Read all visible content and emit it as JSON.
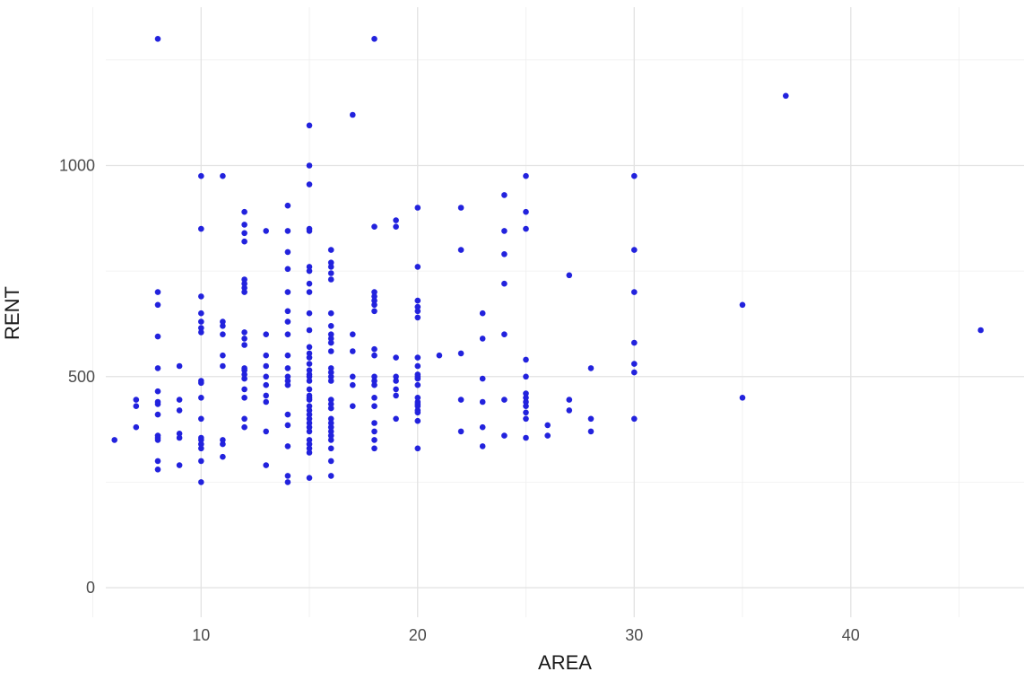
{
  "chart": {
    "point_color": "#2222DD",
    "grid_major_color": "#E3E3E3",
    "grid_minor_color": "#EFEFEF",
    "axis_text_color": "#4D4D4D",
    "axis_title_color": "#1A1A1A",
    "background": "#FFFFFF"
  },
  "chart_data": {
    "type": "scatter",
    "title": "",
    "xlabel": "AREA",
    "ylabel": "RENT",
    "x_ticks": [
      10,
      20,
      30,
      40
    ],
    "x_minor_ticks": [
      5,
      15,
      25,
      35,
      45
    ],
    "y_ticks": [
      0,
      500,
      1000
    ],
    "y_minor_ticks": [
      250,
      750,
      1250
    ],
    "xlim": [
      5.6,
      48
    ],
    "ylim": [
      -70,
      1375
    ],
    "grid": true,
    "legend": "none",
    "points": [
      [
        6,
        350
      ],
      [
        7,
        445
      ],
      [
        7,
        430
      ],
      [
        7,
        380
      ],
      [
        8,
        1300
      ],
      [
        8,
        700
      ],
      [
        8,
        670
      ],
      [
        8,
        595
      ],
      [
        8,
        520
      ],
      [
        8,
        465
      ],
      [
        8,
        440
      ],
      [
        8,
        435
      ],
      [
        8,
        410
      ],
      [
        8,
        360
      ],
      [
        8,
        355
      ],
      [
        8,
        350
      ],
      [
        8,
        300
      ],
      [
        8,
        280
      ],
      [
        9,
        525
      ],
      [
        9,
        445
      ],
      [
        9,
        420
      ],
      [
        9,
        365
      ],
      [
        9,
        355
      ],
      [
        9,
        290
      ],
      [
        10,
        975
      ],
      [
        10,
        850
      ],
      [
        10,
        690
      ],
      [
        10,
        650
      ],
      [
        10,
        630
      ],
      [
        10,
        615
      ],
      [
        10,
        605
      ],
      [
        10,
        490
      ],
      [
        10,
        485
      ],
      [
        10,
        450
      ],
      [
        10,
        400
      ],
      [
        10,
        355
      ],
      [
        10,
        350
      ],
      [
        10,
        340
      ],
      [
        10,
        330
      ],
      [
        10,
        300
      ],
      [
        10,
        250
      ],
      [
        11,
        975
      ],
      [
        11,
        630
      ],
      [
        11,
        620
      ],
      [
        11,
        600
      ],
      [
        11,
        550
      ],
      [
        11,
        525
      ],
      [
        11,
        350
      ],
      [
        11,
        340
      ],
      [
        11,
        310
      ],
      [
        12,
        890
      ],
      [
        12,
        860
      ],
      [
        12,
        840
      ],
      [
        12,
        820
      ],
      [
        12,
        730
      ],
      [
        12,
        720
      ],
      [
        12,
        710
      ],
      [
        12,
        700
      ],
      [
        12,
        605
      ],
      [
        12,
        590
      ],
      [
        12,
        575
      ],
      [
        12,
        520
      ],
      [
        12,
        515
      ],
      [
        12,
        505
      ],
      [
        12,
        495
      ],
      [
        12,
        470
      ],
      [
        12,
        450
      ],
      [
        12,
        400
      ],
      [
        12,
        380
      ],
      [
        13,
        845
      ],
      [
        13,
        600
      ],
      [
        13,
        550
      ],
      [
        13,
        525
      ],
      [
        13,
        500
      ],
      [
        13,
        480
      ],
      [
        13,
        455
      ],
      [
        13,
        440
      ],
      [
        13,
        370
      ],
      [
        13,
        290
      ],
      [
        14,
        905
      ],
      [
        14,
        845
      ],
      [
        14,
        795
      ],
      [
        14,
        755
      ],
      [
        14,
        700
      ],
      [
        14,
        655
      ],
      [
        14,
        630
      ],
      [
        14,
        600
      ],
      [
        14,
        550
      ],
      [
        14,
        520
      ],
      [
        14,
        500
      ],
      [
        14,
        490
      ],
      [
        14,
        480
      ],
      [
        14,
        410
      ],
      [
        14,
        385
      ],
      [
        14,
        335
      ],
      [
        14,
        265
      ],
      [
        14,
        250
      ],
      [
        15,
        1095
      ],
      [
        15,
        1000
      ],
      [
        15,
        955
      ],
      [
        15,
        850
      ],
      [
        15,
        845
      ],
      [
        15,
        760
      ],
      [
        15,
        750
      ],
      [
        15,
        720
      ],
      [
        15,
        700
      ],
      [
        15,
        650
      ],
      [
        15,
        610
      ],
      [
        15,
        570
      ],
      [
        15,
        555
      ],
      [
        15,
        545
      ],
      [
        15,
        530
      ],
      [
        15,
        515
      ],
      [
        15,
        505
      ],
      [
        15,
        500
      ],
      [
        15,
        490
      ],
      [
        15,
        470
      ],
      [
        15,
        455
      ],
      [
        15,
        450
      ],
      [
        15,
        445
      ],
      [
        15,
        430
      ],
      [
        15,
        420
      ],
      [
        15,
        410
      ],
      [
        15,
        400
      ],
      [
        15,
        390
      ],
      [
        15,
        380
      ],
      [
        15,
        370
      ],
      [
        15,
        350
      ],
      [
        15,
        340
      ],
      [
        15,
        330
      ],
      [
        15,
        320
      ],
      [
        15,
        260
      ],
      [
        16,
        800
      ],
      [
        16,
        770
      ],
      [
        16,
        760
      ],
      [
        16,
        745
      ],
      [
        16,
        730
      ],
      [
        16,
        650
      ],
      [
        16,
        620
      ],
      [
        16,
        600
      ],
      [
        16,
        590
      ],
      [
        16,
        580
      ],
      [
        16,
        560
      ],
      [
        16,
        520
      ],
      [
        16,
        510
      ],
      [
        16,
        500
      ],
      [
        16,
        490
      ],
      [
        16,
        445
      ],
      [
        16,
        435
      ],
      [
        16,
        425
      ],
      [
        16,
        400
      ],
      [
        16,
        390
      ],
      [
        16,
        380
      ],
      [
        16,
        370
      ],
      [
        16,
        360
      ],
      [
        16,
        350
      ],
      [
        16,
        330
      ],
      [
        16,
        300
      ],
      [
        16,
        265
      ],
      [
        17,
        1120
      ],
      [
        17,
        600
      ],
      [
        17,
        560
      ],
      [
        17,
        500
      ],
      [
        17,
        480
      ],
      [
        17,
        430
      ],
      [
        18,
        1300
      ],
      [
        18,
        855
      ],
      [
        18,
        700
      ],
      [
        18,
        690
      ],
      [
        18,
        680
      ],
      [
        18,
        670
      ],
      [
        18,
        655
      ],
      [
        18,
        565
      ],
      [
        18,
        550
      ],
      [
        18,
        500
      ],
      [
        18,
        490
      ],
      [
        18,
        480
      ],
      [
        18,
        450
      ],
      [
        18,
        430
      ],
      [
        18,
        390
      ],
      [
        18,
        370
      ],
      [
        18,
        350
      ],
      [
        18,
        330
      ],
      [
        19,
        870
      ],
      [
        19,
        855
      ],
      [
        19,
        545
      ],
      [
        19,
        500
      ],
      [
        19,
        490
      ],
      [
        19,
        470
      ],
      [
        19,
        455
      ],
      [
        19,
        400
      ],
      [
        20,
        900
      ],
      [
        20,
        760
      ],
      [
        20,
        680
      ],
      [
        20,
        665
      ],
      [
        20,
        655
      ],
      [
        20,
        640
      ],
      [
        20,
        545
      ],
      [
        20,
        525
      ],
      [
        20,
        505
      ],
      [
        20,
        500
      ],
      [
        20,
        495
      ],
      [
        20,
        480
      ],
      [
        20,
        450
      ],
      [
        20,
        440
      ],
      [
        20,
        435
      ],
      [
        20,
        430
      ],
      [
        20,
        420
      ],
      [
        20,
        415
      ],
      [
        20,
        395
      ],
      [
        20,
        330
      ],
      [
        21,
        550
      ],
      [
        22,
        900
      ],
      [
        22,
        800
      ],
      [
        22,
        555
      ],
      [
        22,
        445
      ],
      [
        22,
        370
      ],
      [
        23,
        650
      ],
      [
        23,
        590
      ],
      [
        23,
        495
      ],
      [
        23,
        440
      ],
      [
        23,
        380
      ],
      [
        23,
        335
      ],
      [
        24,
        930
      ],
      [
        24,
        845
      ],
      [
        24,
        790
      ],
      [
        24,
        720
      ],
      [
        24,
        600
      ],
      [
        24,
        445
      ],
      [
        24,
        360
      ],
      [
        25,
        975
      ],
      [
        25,
        890
      ],
      [
        25,
        850
      ],
      [
        25,
        540
      ],
      [
        25,
        500
      ],
      [
        25,
        460
      ],
      [
        25,
        450
      ],
      [
        25,
        440
      ],
      [
        25,
        430
      ],
      [
        25,
        415
      ],
      [
        25,
        400
      ],
      [
        25,
        355
      ],
      [
        26,
        385
      ],
      [
        26,
        360
      ],
      [
        27,
        740
      ],
      [
        27,
        445
      ],
      [
        27,
        420
      ],
      [
        28,
        520
      ],
      [
        28,
        400
      ],
      [
        28,
        370
      ],
      [
        30,
        975
      ],
      [
        30,
        800
      ],
      [
        30,
        700
      ],
      [
        30,
        580
      ],
      [
        30,
        530
      ],
      [
        30,
        510
      ],
      [
        30,
        400
      ],
      [
        35,
        670
      ],
      [
        35,
        450
      ],
      [
        37,
        1165
      ],
      [
        46,
        610
      ]
    ]
  }
}
